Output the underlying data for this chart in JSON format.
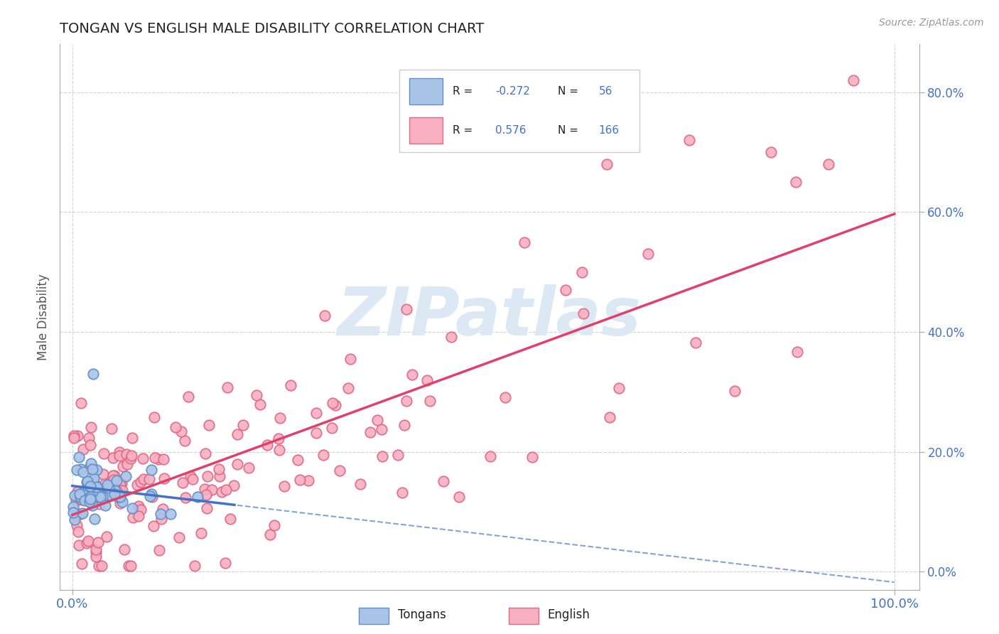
{
  "title": "TONGAN VS ENGLISH MALE DISABILITY CORRELATION CHART",
  "source": "Source: ZipAtlas.com",
  "ylabel": "Male Disability",
  "tongan_color_face": "#aac4e8",
  "tongan_color_edge": "#6090c8",
  "english_color_face": "#f8b0c0",
  "english_color_edge": "#e06888",
  "tongan_R": -0.272,
  "tongan_N": 56,
  "english_R": 0.576,
  "english_N": 166,
  "background_color": "#ffffff",
  "watermark_text": "ZIPatlas",
  "watermark_color": "#dce8f4",
  "title_color": "#222222",
  "axis_label_color": "#4472c4",
  "ylabel_color": "#555555",
  "source_color": "#999999",
  "legend_text_color": "#222222",
  "legend_value_color": "#4472c4",
  "grid_color": "#cccccc",
  "trend_blue": "#4472c4",
  "trend_pink": "#e0406a",
  "xmin": 0,
  "xmax": 100,
  "ymin": 0,
  "ymax": 85,
  "yticks": [
    0,
    20,
    40,
    60,
    80
  ],
  "xticks": [
    0,
    100
  ]
}
